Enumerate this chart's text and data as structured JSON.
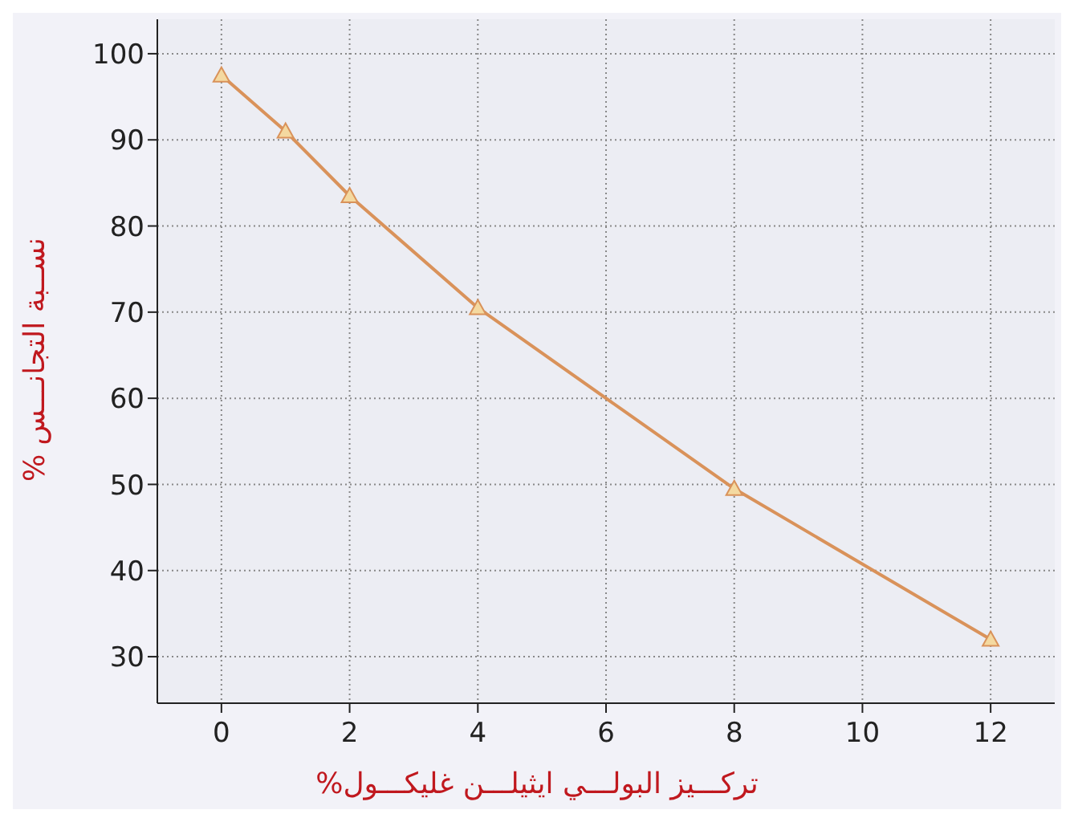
{
  "chart_data": {
    "type": "line",
    "xlabel": "تركـــيز البولـــي ايثيلـــن غليكـــول%",
    "ylabel": "نســبة التجانـــس %",
    "x": [
      0,
      1,
      2,
      4,
      8,
      12
    ],
    "series": [
      {
        "color": "#d9925a",
        "values": [
          97.5,
          91,
          83.5,
          70.5,
          49.5,
          32
        ]
      }
    ],
    "xlim": [
      -1,
      13
    ],
    "xticks": [
      0,
      2,
      4,
      6,
      8,
      10,
      12
    ],
    "ylim": [
      24.6,
      104
    ],
    "yticks": [
      30,
      40,
      50,
      60,
      70,
      80,
      90,
      100
    ],
    "grid": true,
    "marker": "triangle",
    "line_style": "solid"
  }
}
